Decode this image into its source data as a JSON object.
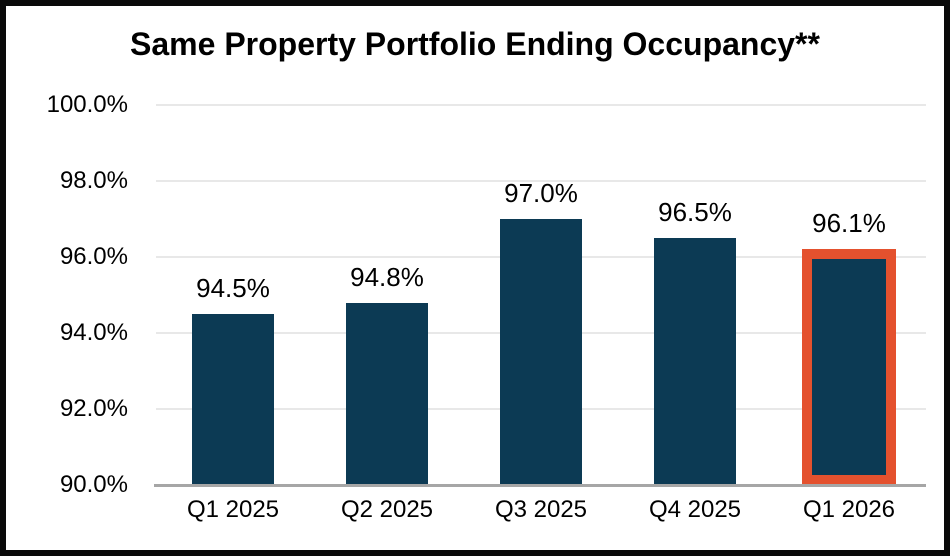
{
  "window": {
    "background": "#FFFFFF",
    "frame_border_color": "#0A0A0A"
  },
  "chart_data": {
    "type": "bar",
    "title": "Same Property Portfolio Ending Occupancy**",
    "categories": [
      "Q1 2025",
      "Q2 2025",
      "Q3 2025",
      "Q4 2025",
      "Q1 2026"
    ],
    "values": [
      94.5,
      94.8,
      97.0,
      96.5,
      96.1
    ],
    "value_labels": [
      "94.5%",
      "94.8%",
      "97.0%",
      "96.5%",
      "96.1%"
    ],
    "xlabel": "",
    "ylabel": "",
    "ylim": [
      90,
      100
    ],
    "ytick_values": [
      100,
      98,
      96,
      94,
      92,
      90
    ],
    "ytick_labels": [
      "100.0%",
      "98.0%",
      "96.0%",
      "94.0%",
      "92.0%",
      "90.0%"
    ],
    "grid": "horizontal",
    "legend": null,
    "highlight": {
      "index": 4,
      "style": "thick-orange-border"
    },
    "colors": {
      "bar": "#0C3A54",
      "highlight_border": "#E4512E",
      "gridline": "#E8E8E8",
      "axis_line": "#A6A6A6",
      "text": "#000000"
    }
  }
}
